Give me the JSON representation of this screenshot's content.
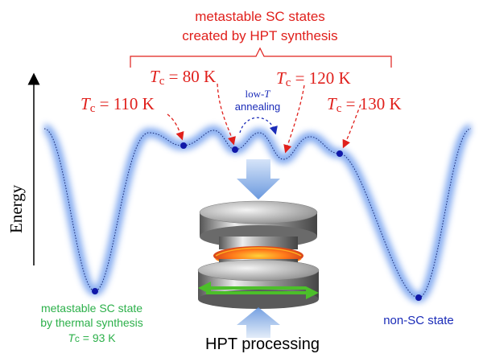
{
  "header": {
    "line1": "metastable SC states",
    "line2": "created by HPT synthesis"
  },
  "states": [
    {
      "symbol": "T",
      "subscript": "c",
      "text": " = 110 K"
    },
    {
      "symbol": "T",
      "subscript": "c",
      "text": " = 80 K"
    },
    {
      "symbol": "T",
      "subscript": "c",
      "text": " = 120 K"
    },
    {
      "symbol": "T",
      "subscript": "c",
      "text": " = 130 K"
    }
  ],
  "annealing": {
    "prefix": "low-",
    "symbol": "T",
    "line2": "annealing"
  },
  "axis_label": "Energy",
  "left_state": {
    "line1": "metastable SC state",
    "line2": "by thermal synthesis",
    "symbol": "T",
    "subscript": "c",
    "text": " = 93 K"
  },
  "right_state": "non-SC state",
  "process_label": "HPT processing"
}
